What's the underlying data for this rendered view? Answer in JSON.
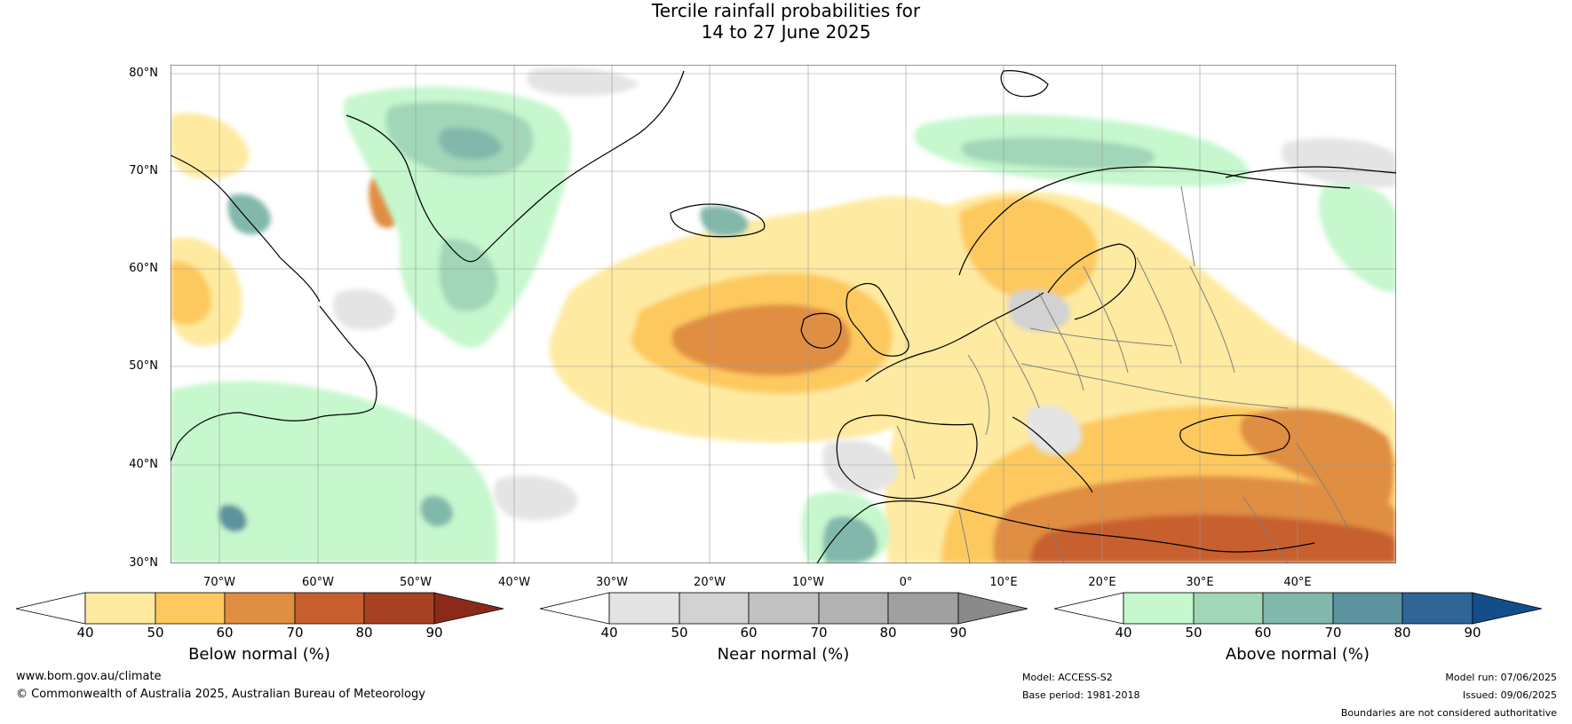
{
  "title": {
    "line1": "Tercile rainfall probabilities for",
    "line2": "14 to 27 June 2025"
  },
  "map": {
    "lat_labels": [
      "80°N",
      "70°N",
      "60°N",
      "50°N",
      "40°N",
      "30°N"
    ],
    "lon_labels": [
      "70°W",
      "60°W",
      "50°W",
      "40°W",
      "30°W",
      "20°W",
      "10°W",
      "0°",
      "10°E",
      "20°E",
      "30°E",
      "40°E"
    ]
  },
  "colorbars": {
    "below": {
      "title": "Below normal (%)",
      "ticks": [
        "40",
        "50",
        "60",
        "70",
        "80",
        "90"
      ],
      "colors": [
        "#ffffff",
        "#feeaa0",
        "#fdc95f",
        "#e08e42",
        "#c85f2e",
        "#a94223",
        "#8c2a1a"
      ]
    },
    "near": {
      "title": "Near normal (%)",
      "ticks": [
        "40",
        "50",
        "60",
        "70",
        "80",
        "90"
      ],
      "colors": [
        "#ffffff",
        "#e4e4e4",
        "#d2d2d2",
        "#c2c2c2",
        "#b2b2b2",
        "#a0a0a0",
        "#8a8a8a"
      ]
    },
    "above": {
      "title": "Above normal (%)",
      "ticks": [
        "40",
        "50",
        "60",
        "70",
        "80",
        "90"
      ],
      "colors": [
        "#ffffff",
        "#c6f7cd",
        "#a2d6b8",
        "#82b8ac",
        "#5d929f",
        "#2f6597",
        "#144e8a"
      ]
    }
  },
  "footer": {
    "website": "www.bom.gov.au/climate",
    "copyright": "© Commonwealth of Australia 2025, Australian Bureau of Meteorology",
    "model": "Model: ACCESS-S2",
    "base_period": "Base period: 1981-2018",
    "model_run": "Model run: 07/06/2025",
    "issued": "Issued: 09/06/2025",
    "disclaimer": "Boundaries are not considered authoritative"
  }
}
